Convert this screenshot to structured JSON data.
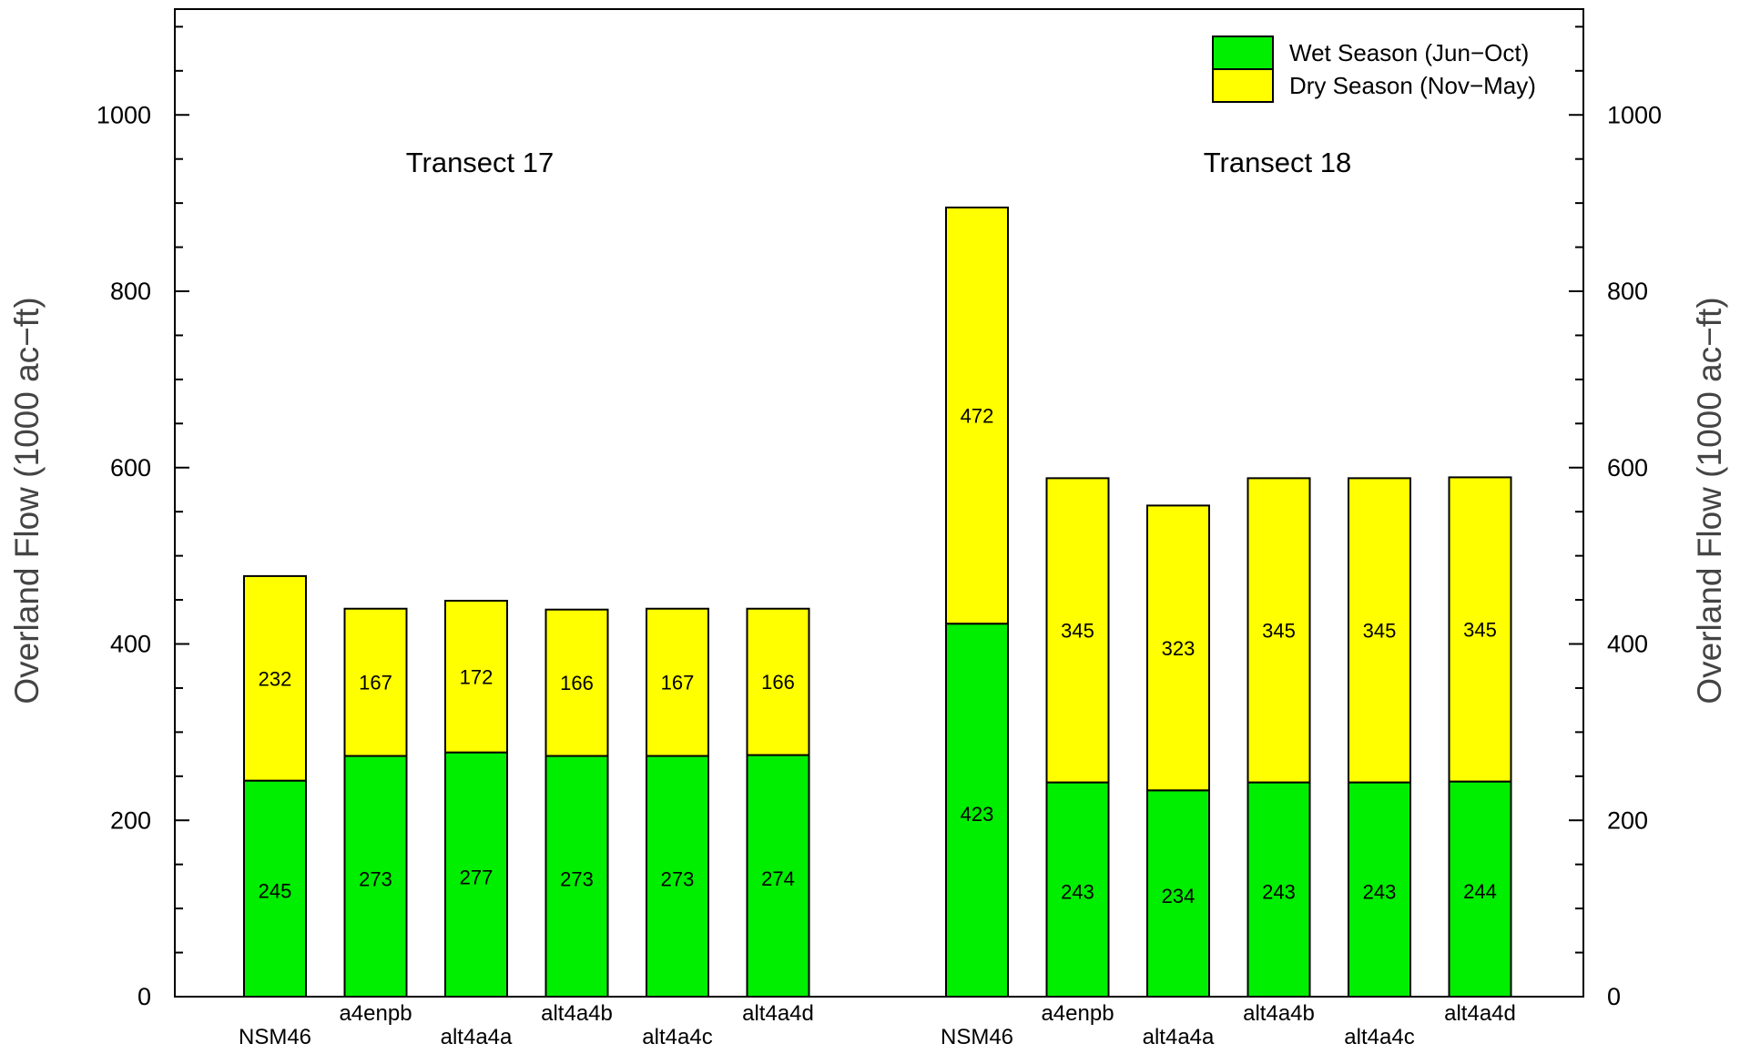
{
  "chart_data": {
    "type": "bar",
    "stacked": true,
    "groups": [
      {
        "title": "Transect 17",
        "categories": [
          "NSM46",
          "a4enpb",
          "alt4a4a",
          "alt4a4b",
          "alt4a4c",
          "alt4a4d"
        ],
        "wet": [
          245,
          273,
          277,
          273,
          273,
          274
        ],
        "dry": [
          232,
          167,
          172,
          166,
          167,
          166
        ]
      },
      {
        "title": "Transect 18",
        "categories": [
          "NSM46",
          "a4enpb",
          "alt4a4a",
          "alt4a4b",
          "alt4a4c",
          "alt4a4d"
        ],
        "wet": [
          423,
          243,
          234,
          243,
          243,
          244
        ],
        "dry": [
          472,
          345,
          323,
          345,
          345,
          345
        ]
      }
    ],
    "series": [
      {
        "name": "Wet Season (Jun−Oct)",
        "color": "#00ee00"
      },
      {
        "name": "Dry Season (Nov−May)",
        "color": "#ffff00"
      }
    ],
    "ylabel": "Overland Flow (1000 ac−ft)",
    "ylabel_right": "Overland Flow (1000 ac−ft)",
    "ylim": [
      0,
      1120
    ],
    "yticks": [
      0,
      200,
      400,
      600,
      800,
      1000
    ],
    "minor_tick_step": 50,
    "legend_position": "top-right",
    "grid": false
  }
}
